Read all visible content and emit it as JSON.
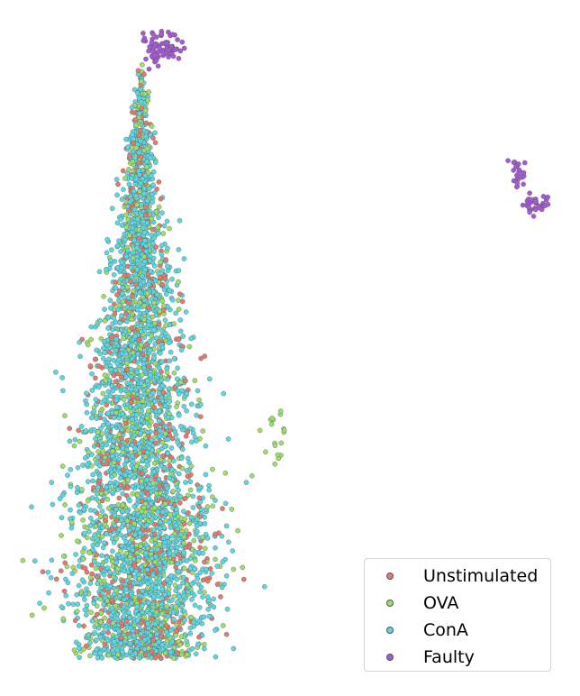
{
  "chart_data": {
    "type": "scatter",
    "title": "",
    "xlabel": "",
    "ylabel": "",
    "axes_visible": false,
    "grid": false,
    "legend_position": "bottom-right",
    "series": [
      {
        "name": "Unstimulated",
        "color": "#e07b6e",
        "clusters": [
          {
            "center": [
              -1.5,
              -2.0
            ],
            "spread": [
              1.5,
              3.5
            ],
            "count": 650,
            "shape": "teardrop"
          }
        ]
      },
      {
        "name": "OVA",
        "color": "#9edd6a",
        "clusters": [
          {
            "center": [
              -1.5,
              -2.0
            ],
            "spread": [
              1.5,
              3.5
            ],
            "count": 900,
            "shape": "teardrop"
          },
          {
            "center": [
              2.6,
              -2.8
            ],
            "spread": [
              0.25,
              0.45
            ],
            "count": 18,
            "shape": "blob"
          }
        ]
      },
      {
        "name": "ConA",
        "color": "#5ed6e0",
        "clusters": [
          {
            "center": [
              -1.5,
              -2.0
            ],
            "spread": [
              1.5,
              3.5
            ],
            "count": 2600,
            "shape": "teardrop"
          }
        ]
      },
      {
        "name": "Faulty",
        "color": "#a35bd3",
        "clusters": [
          {
            "center": [
              -1.0,
              9.5
            ],
            "spread": [
              0.3,
              0.25
            ],
            "count": 75,
            "shape": "blob"
          },
          {
            "center": [
              10.0,
              5.5
            ],
            "spread": [
              0.15,
              0.25
            ],
            "count": 25,
            "shape": "blob"
          },
          {
            "center": [
              10.5,
              4.5
            ],
            "spread": [
              0.25,
              0.15
            ],
            "count": 35,
            "shape": "blob"
          }
        ]
      }
    ]
  },
  "legend": {
    "items": [
      {
        "label": "Unstimulated",
        "color": "#e07b6e"
      },
      {
        "label": "OVA",
        "color": "#9edd6a"
      },
      {
        "label": "ConA",
        "color": "#5ed6e0"
      },
      {
        "label": "Faulty",
        "color": "#a35bd3"
      }
    ]
  }
}
